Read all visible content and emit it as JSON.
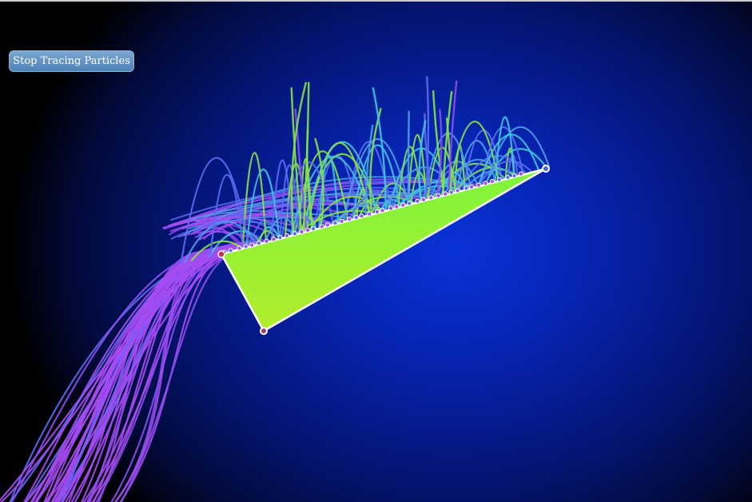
{
  "controls": {
    "trace_button_label": "Stop Tracing Particles"
  },
  "colors": {
    "background_center": "#0a32d8",
    "background_edge": "#000000",
    "wedge_fill_top": "#7ef53a",
    "wedge_fill_bottom": "#b2ec2c",
    "wedge_stroke": "#ffffff",
    "trail_palette": [
      "#a64bf4",
      "#8a4cf0",
      "#5a6cf2",
      "#4f9de8",
      "#3fc7e0",
      "#86e34a"
    ]
  }
}
